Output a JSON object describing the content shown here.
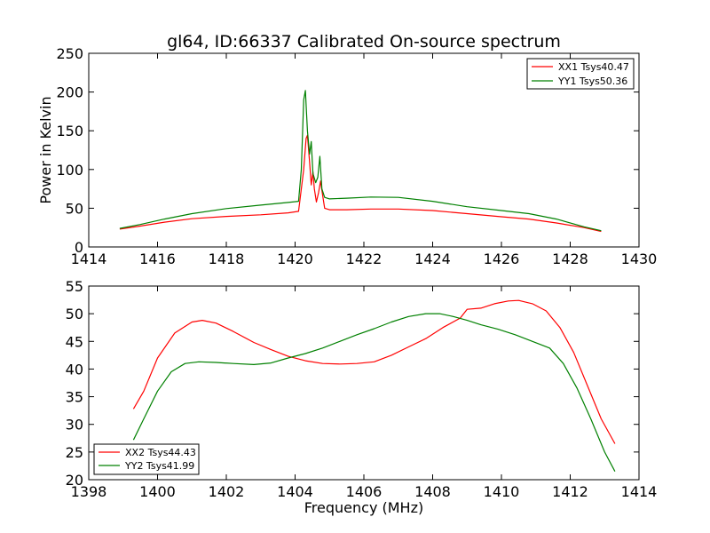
{
  "chart_data": [
    {
      "type": "line",
      "title": "gl64, ID:66337 Calibrated On-source spectrum",
      "xlabel": "",
      "ylabel": "Power in Kelvin",
      "xlim": [
        1414,
        1430
      ],
      "ylim": [
        0,
        250
      ],
      "xticks": [
        "1414",
        "1416",
        "1418",
        "1420",
        "1422",
        "1424",
        "1426",
        "1428",
        "1430"
      ],
      "yticks": [
        "0",
        "50",
        "100",
        "150",
        "200",
        "250"
      ],
      "legend_position": "top-right",
      "grid": false,
      "series": [
        {
          "name": "XX1 Tsys40.47",
          "color": "#ff0000",
          "points": [
            [
              1414.9,
              23
            ],
            [
              1415.5,
              27
            ],
            [
              1416.2,
              32
            ],
            [
              1417,
              36.5
            ],
            [
              1418,
              39.5
            ],
            [
              1419,
              41.5
            ],
            [
              1419.8,
              44
            ],
            [
              1420.1,
              46
            ],
            [
              1420.25,
              100
            ],
            [
              1420.32,
              140
            ],
            [
              1420.36,
              144
            ],
            [
              1420.42,
              110
            ],
            [
              1420.47,
              80
            ],
            [
              1420.52,
              97
            ],
            [
              1420.56,
              75
            ],
            [
              1420.62,
              58
            ],
            [
              1420.68,
              70
            ],
            [
              1420.74,
              85
            ],
            [
              1420.8,
              67
            ],
            [
              1420.86,
              50
            ],
            [
              1421,
              48
            ],
            [
              1421.5,
              48
            ],
            [
              1422.2,
              49
            ],
            [
              1423,
              49
            ],
            [
              1424,
              47
            ],
            [
              1425,
              43
            ],
            [
              1426,
              39
            ],
            [
              1426.8,
              36
            ],
            [
              1427.6,
              31
            ],
            [
              1428.4,
              25
            ],
            [
              1428.9,
              20
            ]
          ]
        },
        {
          "name": "YY1 Tsys50.36",
          "color": "#008000",
          "points": [
            [
              1414.9,
              24
            ],
            [
              1415.5,
              29
            ],
            [
              1416.2,
              36
            ],
            [
              1417,
              43
            ],
            [
              1418,
              49.5
            ],
            [
              1419,
              54
            ],
            [
              1419.8,
              57.5
            ],
            [
              1420.1,
              59
            ],
            [
              1420.18,
              100
            ],
            [
              1420.25,
              190
            ],
            [
              1420.3,
              202
            ],
            [
              1420.36,
              150
            ],
            [
              1420.42,
              120
            ],
            [
              1420.47,
              136
            ],
            [
              1420.52,
              95
            ],
            [
              1420.6,
              83
            ],
            [
              1420.66,
              90
            ],
            [
              1420.72,
              117
            ],
            [
              1420.78,
              75
            ],
            [
              1420.86,
              64
            ],
            [
              1421,
              62
            ],
            [
              1421.5,
              63
            ],
            [
              1422.2,
              64.5
            ],
            [
              1423,
              64
            ],
            [
              1424,
              59
            ],
            [
              1425,
              52
            ],
            [
              1426,
              47
            ],
            [
              1426.8,
              43
            ],
            [
              1427.6,
              36
            ],
            [
              1428.4,
              26
            ],
            [
              1428.9,
              21
            ]
          ]
        }
      ]
    },
    {
      "type": "line",
      "title": "",
      "xlabel": "Frequency (MHz)",
      "ylabel": "",
      "xlim": [
        1398,
        1414
      ],
      "ylim": [
        20,
        55
      ],
      "xticks": [
        "1398",
        "1400",
        "1402",
        "1404",
        "1406",
        "1408",
        "1410",
        "1412",
        "1414"
      ],
      "yticks": [
        "20",
        "25",
        "30",
        "35",
        "40",
        "45",
        "50",
        "55"
      ],
      "legend_position": "bottom-left",
      "grid": false,
      "series": [
        {
          "name": "XX2 Tsys44.43",
          "color": "#ff0000",
          "points": [
            [
              1399.3,
              32.8
            ],
            [
              1399.6,
              36
            ],
            [
              1400,
              42
            ],
            [
              1400.5,
              46.5
            ],
            [
              1401,
              48.5
            ],
            [
              1401.3,
              48.8
            ],
            [
              1401.7,
              48.3
            ],
            [
              1402.2,
              46.8
            ],
            [
              1402.8,
              44.8
            ],
            [
              1403.3,
              43.5
            ],
            [
              1403.8,
              42.3
            ],
            [
              1404.3,
              41.5
            ],
            [
              1404.8,
              41
            ],
            [
              1405.3,
              40.9
            ],
            [
              1405.8,
              41
            ],
            [
              1406.3,
              41.3
            ],
            [
              1406.8,
              42.5
            ],
            [
              1407.3,
              44
            ],
            [
              1407.8,
              45.5
            ],
            [
              1408.3,
              47.5
            ],
            [
              1408.8,
              49.2
            ],
            [
              1409,
              50.8
            ],
            [
              1409.4,
              51
            ],
            [
              1409.8,
              51.8
            ],
            [
              1410.2,
              52.3
            ],
            [
              1410.5,
              52.4
            ],
            [
              1410.9,
              51.8
            ],
            [
              1411.3,
              50.5
            ],
            [
              1411.7,
              47.5
            ],
            [
              1412.1,
              43
            ],
            [
              1412.5,
              37
            ],
            [
              1412.9,
              31
            ],
            [
              1413.3,
              26.5
            ]
          ]
        },
        {
          "name": "YY2 Tsys41.99",
          "color": "#008000",
          "points": [
            [
              1399.3,
              27.2
            ],
            [
              1399.6,
              31
            ],
            [
              1400,
              36
            ],
            [
              1400.4,
              39.5
            ],
            [
              1400.8,
              41
            ],
            [
              1401.2,
              41.3
            ],
            [
              1401.7,
              41.2
            ],
            [
              1402.2,
              41
            ],
            [
              1402.8,
              40.8
            ],
            [
              1403.3,
              41.1
            ],
            [
              1403.8,
              42
            ],
            [
              1404.3,
              42.8
            ],
            [
              1404.8,
              43.8
            ],
            [
              1405.3,
              45
            ],
            [
              1405.8,
              46.2
            ],
            [
              1406.3,
              47.3
            ],
            [
              1406.8,
              48.5
            ],
            [
              1407.3,
              49.5
            ],
            [
              1407.8,
              50
            ],
            [
              1408.2,
              50
            ],
            [
              1408.6,
              49.5
            ],
            [
              1409,
              48.8
            ],
            [
              1409.4,
              48
            ],
            [
              1409.9,
              47.2
            ],
            [
              1410.4,
              46.2
            ],
            [
              1410.9,
              45
            ],
            [
              1411.4,
              43.8
            ],
            [
              1411.8,
              41
            ],
            [
              1412.2,
              36.5
            ],
            [
              1412.6,
              31
            ],
            [
              1413,
              25
            ],
            [
              1413.3,
              21.5
            ]
          ]
        }
      ]
    }
  ]
}
